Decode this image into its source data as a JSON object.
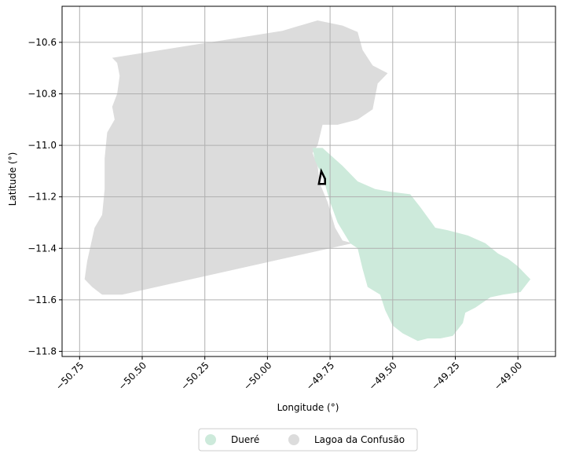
{
  "chart_data": {
    "type": "map",
    "xlabel": "Longitude (°)",
    "ylabel": "Latitude (°)",
    "xlim": [
      -50.82,
      -48.85
    ],
    "ylim": [
      -11.82,
      -10.46
    ],
    "x_ticks": [
      -50.75,
      -50.5,
      -50.25,
      -50.0,
      -49.75,
      -49.5,
      -49.25,
      -49.0
    ],
    "x_tick_labels": [
      "−50.75",
      "−50.50",
      "−50.25",
      "−50.00",
      "−49.75",
      "−49.50",
      "−49.25",
      "−49.00"
    ],
    "y_ticks": [
      -10.6,
      -10.8,
      -11.0,
      -11.2,
      -11.4,
      -11.6,
      -11.8
    ],
    "y_tick_labels": [
      "−10.6",
      "−10.8",
      "−11.0",
      "−11.2",
      "−11.4",
      "−11.6",
      "−11.8"
    ],
    "grid": true,
    "legend_position": "bottom-center",
    "regions": [
      {
        "name": "Lagoa da Confusão",
        "color": "#dcdcdc",
        "polygon": [
          [
            -50.62,
            -10.66
          ],
          [
            -49.94,
            -10.555
          ],
          [
            -49.8,
            -10.515
          ],
          [
            -49.7,
            -10.535
          ],
          [
            -49.64,
            -10.56
          ],
          [
            -49.62,
            -10.63
          ],
          [
            -49.58,
            -10.69
          ],
          [
            -49.52,
            -10.72
          ],
          [
            -49.56,
            -10.76
          ],
          [
            -49.58,
            -10.86
          ],
          [
            -49.64,
            -10.9
          ],
          [
            -49.72,
            -10.92
          ],
          [
            -49.78,
            -10.92
          ],
          [
            -49.8,
            -11.0
          ],
          [
            -49.82,
            -11.03
          ],
          [
            -49.8,
            -11.08
          ],
          [
            -49.79,
            -11.15
          ],
          [
            -49.76,
            -11.22
          ],
          [
            -49.73,
            -11.32
          ],
          [
            -49.7,
            -11.37
          ],
          [
            -49.66,
            -11.38
          ],
          [
            -50.58,
            -11.58
          ],
          [
            -50.66,
            -11.58
          ],
          [
            -50.7,
            -11.55
          ],
          [
            -50.73,
            -11.52
          ],
          [
            -50.72,
            -11.45
          ],
          [
            -50.69,
            -11.32
          ],
          [
            -50.66,
            -11.27
          ],
          [
            -50.65,
            -11.17
          ],
          [
            -50.65,
            -11.05
          ],
          [
            -50.64,
            -10.95
          ],
          [
            -50.61,
            -10.9
          ],
          [
            -50.62,
            -10.85
          ],
          [
            -50.6,
            -10.8
          ],
          [
            -50.59,
            -10.73
          ],
          [
            -50.6,
            -10.68
          ]
        ]
      },
      {
        "name": "Dueré",
        "color": "#cdeadb",
        "polygon": [
          [
            -49.82,
            -11.01
          ],
          [
            -49.78,
            -11.01
          ],
          [
            -49.7,
            -11.08
          ],
          [
            -49.64,
            -11.14
          ],
          [
            -49.57,
            -11.17
          ],
          [
            -49.51,
            -11.18
          ],
          [
            -49.43,
            -11.19
          ],
          [
            -49.39,
            -11.24
          ],
          [
            -49.33,
            -11.32
          ],
          [
            -49.28,
            -11.33
          ],
          [
            -49.2,
            -11.35
          ],
          [
            -49.13,
            -11.38
          ],
          [
            -49.08,
            -11.42
          ],
          [
            -49.04,
            -11.44
          ],
          [
            -49.0,
            -11.47
          ],
          [
            -48.97,
            -11.5
          ],
          [
            -48.95,
            -11.52
          ],
          [
            -48.99,
            -11.57
          ],
          [
            -49.06,
            -11.58
          ],
          [
            -49.11,
            -11.59
          ],
          [
            -49.17,
            -11.63
          ],
          [
            -49.21,
            -11.65
          ],
          [
            -49.22,
            -11.69
          ],
          [
            -49.26,
            -11.74
          ],
          [
            -49.31,
            -11.75
          ],
          [
            -49.36,
            -11.75
          ],
          [
            -49.4,
            -11.76
          ],
          [
            -49.46,
            -11.73
          ],
          [
            -49.5,
            -11.7
          ],
          [
            -49.53,
            -11.64
          ],
          [
            -49.55,
            -11.58
          ],
          [
            -49.6,
            -11.55
          ],
          [
            -49.62,
            -11.48
          ],
          [
            -49.64,
            -11.4
          ],
          [
            -49.67,
            -11.38
          ],
          [
            -49.72,
            -11.3
          ],
          [
            -49.75,
            -11.22
          ],
          [
            -49.78,
            -11.12
          ],
          [
            -49.81,
            -11.06
          ]
        ]
      }
    ],
    "highlight_outline": {
      "color": "#000000",
      "polygon": [
        [
          -49.785,
          -11.1
        ],
        [
          -49.795,
          -11.15
        ],
        [
          -49.77,
          -11.15
        ],
        [
          -49.77,
          -11.13
        ]
      ]
    }
  },
  "legend": {
    "items": [
      {
        "label": "Dueré",
        "color": "#cdeadb"
      },
      {
        "label": "Lagoa da Confusão",
        "color": "#dcdcdc"
      }
    ]
  }
}
